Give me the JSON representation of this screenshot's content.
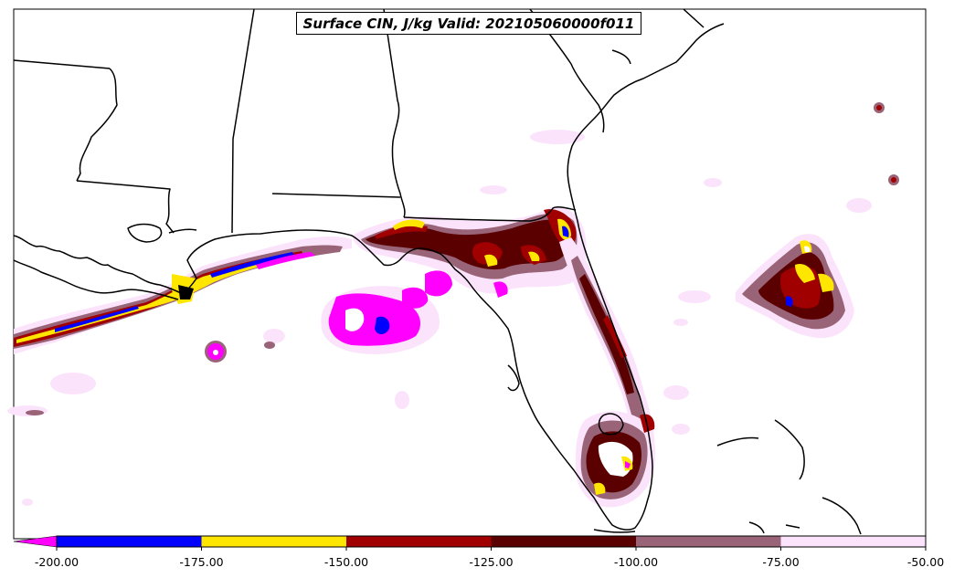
{
  "title": "Surface CIN, J/kg Valid: 202105060000f011",
  "colorbar": {
    "ticks": [
      "-200.00",
      "-175.00",
      "-150.00",
      "-125.00",
      "-100.00",
      "-75.00",
      "-50.00"
    ],
    "bins": [
      {
        "from": -200,
        "to": -175,
        "color": "#0000ff"
      },
      {
        "from": -175,
        "to": -150,
        "color": "#ffe600"
      },
      {
        "from": -150,
        "to": -125,
        "color": "#a00000"
      },
      {
        "from": -125,
        "to": -100,
        "color": "#5a0000"
      },
      {
        "from": -100,
        "to": -75,
        "color": "#9a6478"
      },
      {
        "from": -75,
        "to": -50,
        "color": "#fbe4fb"
      }
    ],
    "under_color": "#ff00ff"
  },
  "colors": {
    "very_light": "#fbe4fb",
    "mauve": "#9a6478",
    "dark_red": "#5a0000",
    "red": "#a00000",
    "yellow": "#ffe600",
    "blue": "#0000ff",
    "magenta": "#ff00ff",
    "border": "#000000"
  }
}
